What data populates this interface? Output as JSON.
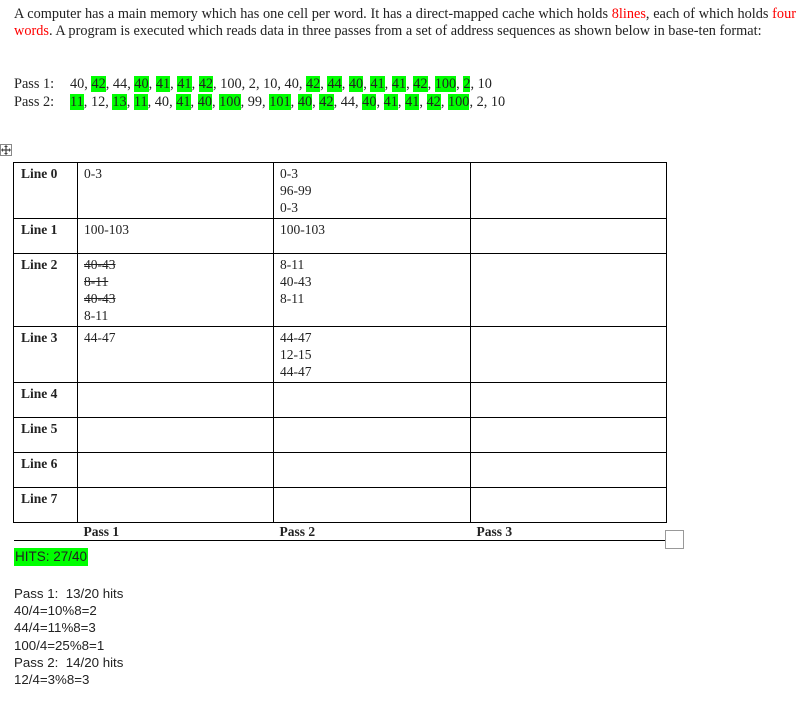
{
  "intro": {
    "part1": "A computer has a main memory which has one cell per word. It has a direct-mapped cache which holds ",
    "lines_red": "8lines",
    "part2": ", each of which holds ",
    "words_red": "four words",
    "part3": ". A program is executed which reads data in three passes from a set of address sequences as shown below in base-ten format:"
  },
  "passes": [
    {
      "label": "Pass 1:",
      "tokens": [
        {
          "t": "40",
          "h": false
        },
        {
          "t": "42",
          "h": true
        },
        {
          "t": "44",
          "h": false
        },
        {
          "t": "40",
          "h": true
        },
        {
          "t": "41",
          "h": true
        },
        {
          "t": "41",
          "h": true
        },
        {
          "t": "42",
          "h": true
        },
        {
          "t": "100",
          "h": false
        },
        {
          "t": "2",
          "h": false
        },
        {
          "t": "10",
          "h": false
        },
        {
          "t": "40",
          "h": false
        },
        {
          "t": "42",
          "h": true
        },
        {
          "t": "44",
          "h": true
        },
        {
          "t": "40",
          "h": true
        },
        {
          "t": "41",
          "h": true
        },
        {
          "t": "41",
          "h": true
        },
        {
          "t": "42",
          "h": true
        },
        {
          "t": "100",
          "h": true
        },
        {
          "t": "2",
          "h": true
        },
        {
          "t": "10",
          "h": false
        }
      ]
    },
    {
      "label": "Pass 2:",
      "tokens": [
        {
          "t": "11",
          "h": true
        },
        {
          "t": "12",
          "h": false
        },
        {
          "t": "13",
          "h": true
        },
        {
          "t": "11",
          "h": true
        },
        {
          "t": "40",
          "h": false
        },
        {
          "t": "41",
          "h": true
        },
        {
          "t": "40",
          "h": true
        },
        {
          "t": "100",
          "h": true
        },
        {
          "t": "99",
          "h": false
        },
        {
          "t": "101",
          "h": true
        },
        {
          "t": "40",
          "h": true
        },
        {
          "t": "42",
          "h": true
        },
        {
          "t": "44",
          "h": false
        },
        {
          "t": "40",
          "h": true
        },
        {
          "t": "41",
          "h": true
        },
        {
          "t": "41",
          "h": true
        },
        {
          "t": "42",
          "h": true
        },
        {
          "t": "100",
          "h": true
        },
        {
          "t": "2",
          "h": false
        },
        {
          "t": "10",
          "h": false
        }
      ]
    }
  ],
  "table": {
    "rows": [
      {
        "label": "Line 0",
        "p1": [
          {
            "v": "0-3",
            "s": false
          }
        ],
        "p2": [
          {
            "v": "0-3",
            "s": false
          },
          {
            "v": "96-99",
            "s": false
          },
          {
            "v": "0-3",
            "s": false
          }
        ],
        "p3": []
      },
      {
        "label": "Line 1",
        "p1": [
          {
            "v": "100-103",
            "s": false
          }
        ],
        "p2": [
          {
            "v": "100-103",
            "s": false
          }
        ],
        "p3": []
      },
      {
        "label": "Line 2",
        "p1": [
          {
            "v": "40-43",
            "s": true
          },
          {
            "v": "8-11",
            "s": true
          },
          {
            "v": "40-43",
            "s": true
          },
          {
            "v": "8-11",
            "s": false
          }
        ],
        "p2": [
          {
            "v": "8-11",
            "s": false
          },
          {
            "v": "40-43",
            "s": false
          },
          {
            "v": "8-11",
            "s": false
          }
        ],
        "p3": []
      },
      {
        "label": "Line 3",
        "p1": [
          {
            "v": "44-47",
            "s": false
          }
        ],
        "p2": [
          {
            "v": "44-47",
            "s": false
          },
          {
            "v": "12-15",
            "s": false
          },
          {
            "v": "44-47",
            "s": false
          }
        ],
        "p3": []
      },
      {
        "label": "Line 4",
        "p1": [],
        "p2": [],
        "p3": []
      },
      {
        "label": "Line 5",
        "p1": [],
        "p2": [],
        "p3": []
      },
      {
        "label": "Line 6",
        "p1": [],
        "p2": [],
        "p3": []
      },
      {
        "label": "Line 7",
        "p1": [],
        "p2": [],
        "p3": []
      }
    ],
    "pass_labels": [
      "Pass 1",
      "Pass 2",
      "Pass 3"
    ]
  },
  "hits": "HITS: 27/40",
  "notes": [
    "Pass 1:  13/20 hits",
    "40/4=10%8=2",
    "44/4=11%8=3",
    "100/4=25%8=1",
    "Pass 2:  14/20 hits",
    "12/4=3%8=3"
  ],
  "colors": {
    "highlight": "#00ff00",
    "red_text": "#ff0000"
  }
}
